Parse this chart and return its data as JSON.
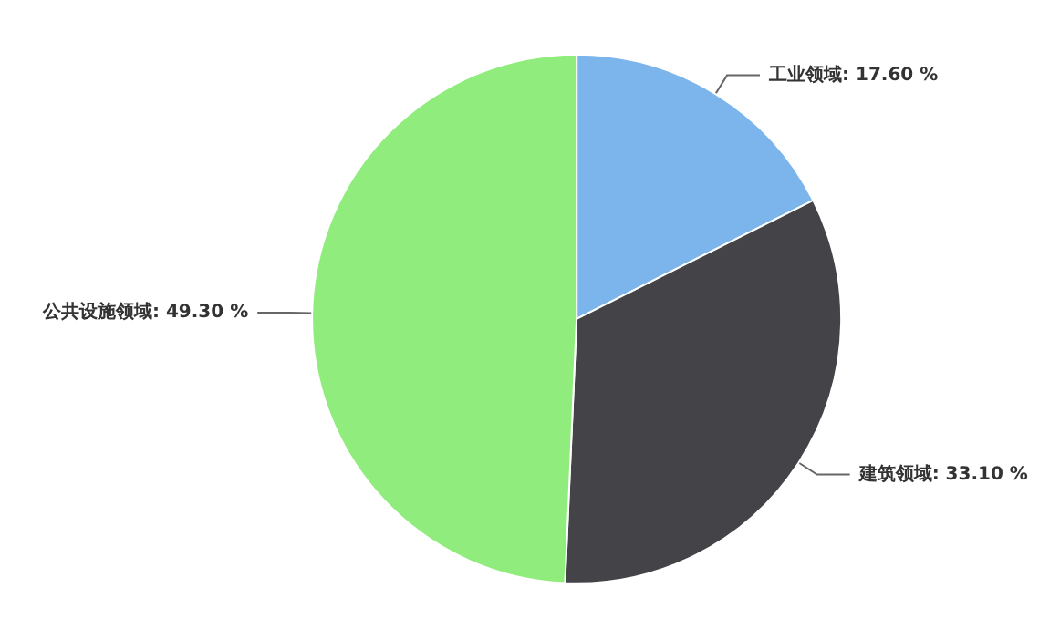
{
  "chart_data": {
    "type": "pie",
    "categories": [
      "工业领域",
      "建筑领域",
      "公共设施领域"
    ],
    "values": [
      17.6,
      33.1,
      49.3
    ],
    "value_labels": [
      "17.60 %",
      "33.10 %",
      "49.30 %"
    ],
    "colors": [
      "#7cb5ec",
      "#434348",
      "#90ed7d"
    ],
    "legend": false
  }
}
